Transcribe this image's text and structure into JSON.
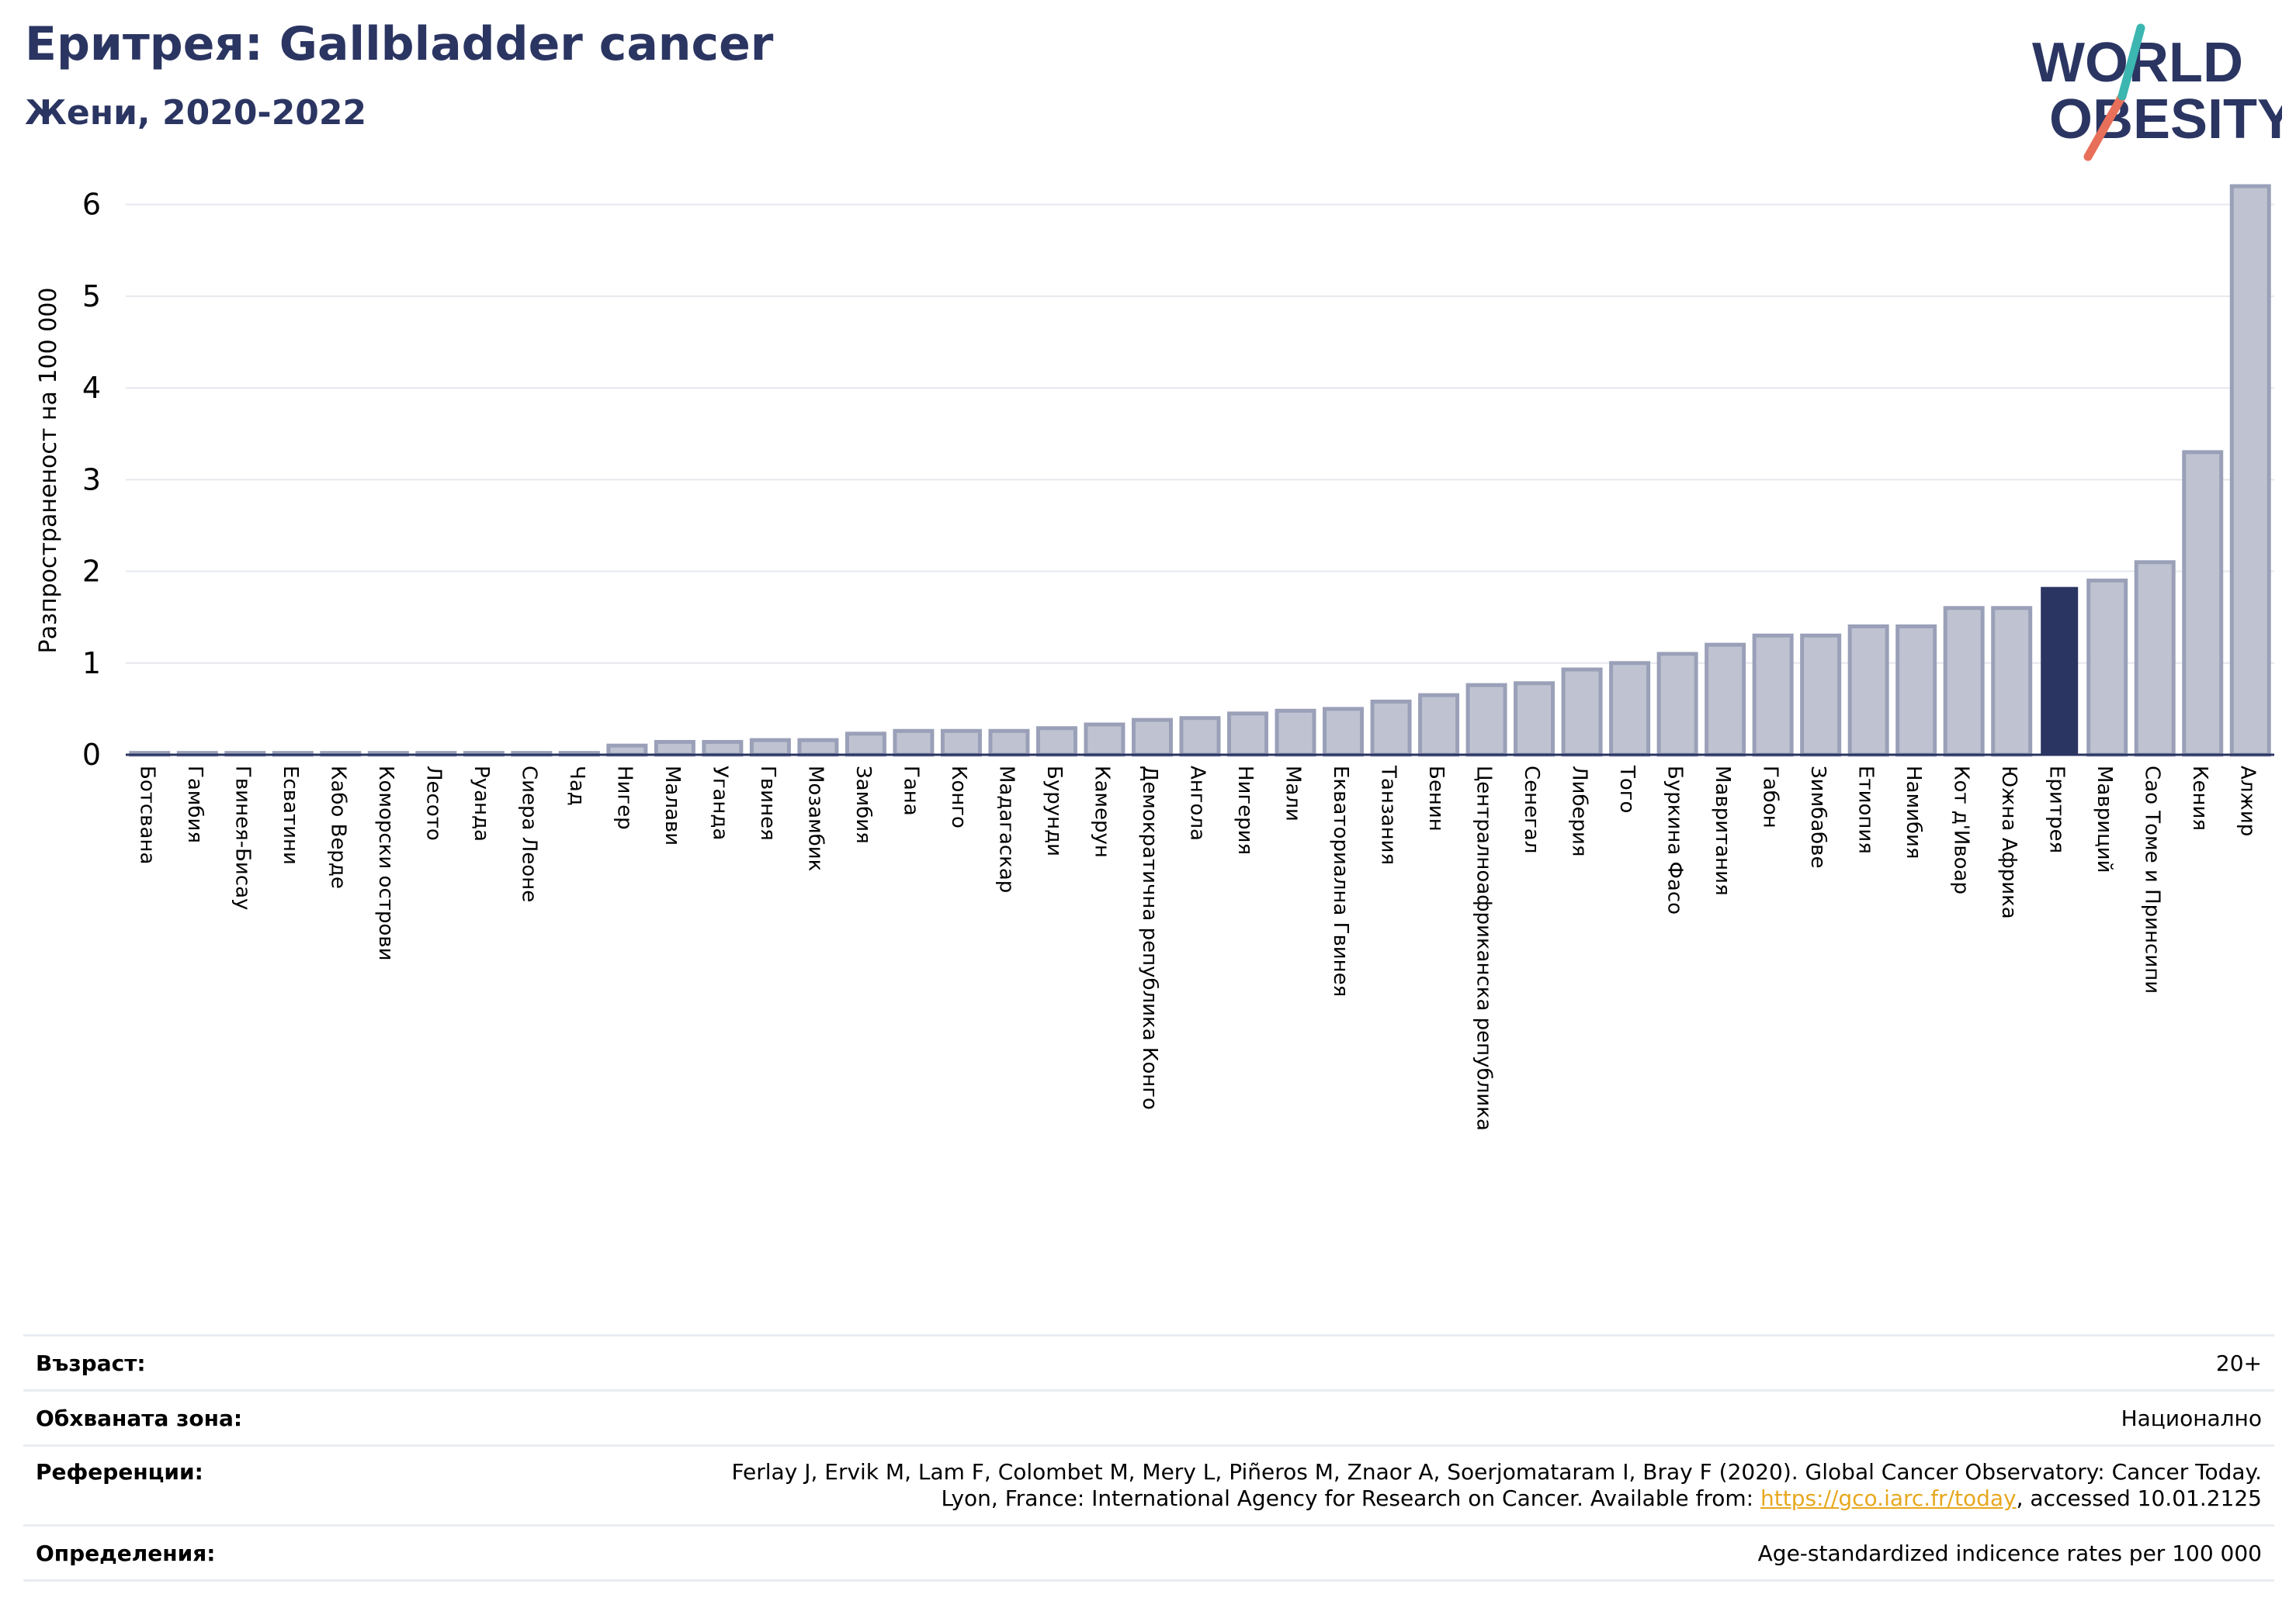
{
  "header": {
    "title": "Еритрея: Gallbladder cancer",
    "subtitle": "Жени, 2020-2022"
  },
  "logo": {
    "line1": "WORLD",
    "line2": "OBESITY"
  },
  "colors": {
    "bar": "#bfc3d1",
    "bar_edge": "#9aa0b8",
    "highlight": "#2b3562",
    "title": "#2b3562",
    "link": "#e7a81e"
  },
  "chart_data": {
    "type": "bar",
    "title": "Еритрея: Gallbladder cancer",
    "subtitle": "Жени, 2020-2022",
    "ylabel": "Разпространеност  на 100 000",
    "xlabel": "",
    "ylim": [
      0,
      6.2
    ],
    "yticks": [
      0,
      1,
      2,
      3,
      4,
      5,
      6
    ],
    "grid": true,
    "highlight": "Еритрея",
    "categories": [
      "Ботсвана",
      "Гамбия",
      "Гвинея-Бисау",
      "Есватини",
      "Кабо Верде",
      "Коморски острови",
      "Лесото",
      "Руанда",
      "Сиера Леоне",
      "Чад",
      "Нигер",
      "Малави",
      "Уганда",
      "Гвинея",
      "Мозамбик",
      "Замбия",
      "Гана",
      "Конго",
      "Мадагаскар",
      "Бурунди",
      "Камерун",
      "Демократична република Конго",
      "Ангола",
      "Нигерия",
      "Мали",
      "Екваториална Гвинея",
      "Танзания",
      "Бенин",
      "Централноафриканска република",
      "Сенегал",
      "Либерия",
      "Того",
      "Буркина Фасо",
      "Мавритания",
      "Габон",
      "Зимбабве",
      "Етиопия",
      "Намибия",
      "Кот д'Ивоар",
      "Южна Африка",
      "Еритрея",
      "Мавриций",
      "Сао Томе и Принсипи",
      "Кения",
      "Алжир"
    ],
    "values": [
      0.02,
      0.02,
      0.02,
      0.02,
      0.02,
      0.02,
      0.02,
      0.02,
      0.02,
      0.02,
      0.1,
      0.14,
      0.14,
      0.16,
      0.16,
      0.23,
      0.26,
      0.26,
      0.26,
      0.29,
      0.33,
      0.38,
      0.4,
      0.45,
      0.48,
      0.5,
      0.58,
      0.65,
      0.76,
      0.78,
      0.93,
      1.0,
      1.1,
      1.2,
      1.3,
      1.3,
      1.4,
      1.4,
      1.6,
      1.6,
      1.83,
      1.9,
      2.1,
      3.3,
      6.2
    ]
  },
  "info": {
    "age_label": "Възраст:",
    "age_value": "20+",
    "area_label": "Обхваната зона:",
    "area_value": "Национално",
    "ref_label": "Референции:",
    "ref_line1": "Ferlay J, Ervik M, Lam F, Colombet M, Mery L, Piñeros M, Znaor A, Soerjomataram I, Bray F (2020). Global Cancer Observatory: Cancer Today.",
    "ref_line2_prefix": "Lyon, France: International Agency for Research on Cancer. Available from: ",
    "ref_link": "https://gco.iarc.fr/today",
    "ref_line2_suffix": ", accessed 10.01.2125",
    "def_label": "Определения:",
    "def_value": "Age-standardized indicence rates per 100 000"
  }
}
